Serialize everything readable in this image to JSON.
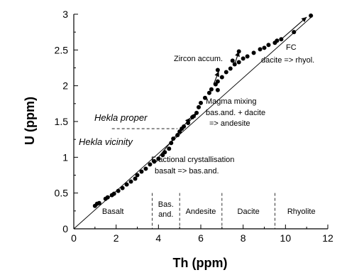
{
  "chart_data": {
    "type": "scatter",
    "xlabel": "Th (ppm)",
    "ylabel": "U (ppm)",
    "xlim": [
      0,
      12
    ],
    "ylim": [
      0,
      3
    ],
    "xticks": [
      "0",
      "2",
      "4",
      "6",
      "8",
      "10",
      "12"
    ],
    "yticks": [
      "0",
      "0.5",
      "1",
      "1.5",
      "2",
      "2.5",
      "3"
    ],
    "points": [
      {
        "x": 1.0,
        "y": 0.32
      },
      {
        "x": 1.1,
        "y": 0.35
      },
      {
        "x": 1.2,
        "y": 0.36
      },
      {
        "x": 1.5,
        "y": 0.42
      },
      {
        "x": 1.6,
        "y": 0.44
      },
      {
        "x": 1.8,
        "y": 0.47
      },
      {
        "x": 1.9,
        "y": 0.49
      },
      {
        "x": 2.1,
        "y": 0.53
      },
      {
        "x": 2.3,
        "y": 0.57
      },
      {
        "x": 2.5,
        "y": 0.62
      },
      {
        "x": 2.7,
        "y": 0.66
      },
      {
        "x": 2.9,
        "y": 0.7
      },
      {
        "x": 3.0,
        "y": 0.75
      },
      {
        "x": 3.2,
        "y": 0.8
      },
      {
        "x": 3.4,
        "y": 0.84
      },
      {
        "x": 3.6,
        "y": 0.9
      },
      {
        "x": 3.8,
        "y": 0.94
      },
      {
        "x": 4.0,
        "y": 0.98
      },
      {
        "x": 4.2,
        "y": 1.03
      },
      {
        "x": 4.3,
        "y": 1.07
      },
      {
        "x": 4.5,
        "y": 1.12
      },
      {
        "x": 4.6,
        "y": 1.2
      },
      {
        "x": 4.7,
        "y": 1.26
      },
      {
        "x": 4.9,
        "y": 1.31
      },
      {
        "x": 5.0,
        "y": 1.36
      },
      {
        "x": 5.1,
        "y": 1.4
      },
      {
        "x": 5.2,
        "y": 1.43
      },
      {
        "x": 5.4,
        "y": 1.48
      },
      {
        "x": 5.6,
        "y": 1.56
      },
      {
        "x": 5.8,
        "y": 1.62
      },
      {
        "x": 5.9,
        "y": 1.7
      },
      {
        "x": 6.0,
        "y": 1.76
      },
      {
        "x": 6.2,
        "y": 1.83
      },
      {
        "x": 6.4,
        "y": 1.9
      },
      {
        "x": 6.5,
        "y": 1.95
      },
      {
        "x": 6.7,
        "y": 2.02
      },
      {
        "x": 6.8,
        "y": 2.06
      },
      {
        "x": 7.0,
        "y": 2.12
      },
      {
        "x": 7.2,
        "y": 2.19
      },
      {
        "x": 7.4,
        "y": 2.24
      },
      {
        "x": 7.6,
        "y": 2.3
      },
      {
        "x": 7.8,
        "y": 2.33
      },
      {
        "x": 8.0,
        "y": 2.38
      },
      {
        "x": 8.2,
        "y": 2.41
      },
      {
        "x": 8.5,
        "y": 2.46
      },
      {
        "x": 8.8,
        "y": 2.51
      },
      {
        "x": 9.0,
        "y": 2.53
      },
      {
        "x": 9.2,
        "y": 2.57
      },
      {
        "x": 9.5,
        "y": 2.6
      },
      {
        "x": 9.6,
        "y": 2.63
      },
      {
        "x": 9.8,
        "y": 2.65
      },
      {
        "x": 10.4,
        "y": 2.75
      },
      {
        "x": 11.2,
        "y": 2.98
      },
      {
        "x": 6.8,
        "y": 2.22
      },
      {
        "x": 6.8,
        "y": 1.94
      },
      {
        "x": 7.8,
        "y": 2.48
      },
      {
        "x": 7.5,
        "y": 2.35
      }
    ],
    "annotations": [
      {
        "text": "Zircon accum."
      },
      {
        "text": "FC"
      },
      {
        "text": "dacite => rhyol."
      },
      {
        "text": "Magma mixing"
      },
      {
        "text": "bas.and. + dacite"
      },
      {
        "text": "=> andesite"
      },
      {
        "text": "Fractional crystallisation"
      },
      {
        "text": "basalt => bas.and."
      }
    ],
    "hekla": {
      "proper_label": "Hekla proper",
      "vicinity_label": "Hekla vicinity",
      "boundary_u": 1.4
    },
    "rock_regions": [
      {
        "label": "Basalt",
        "x_from": 0,
        "x_to": 3.7
      },
      {
        "label": "Bas.",
        "label2": "and.",
        "x_from": 3.7,
        "x_to": 5.0
      },
      {
        "label": "Andesite",
        "x_from": 5.0,
        "x_to": 7.0
      },
      {
        "label": "Dacite",
        "x_from": 7.0,
        "x_to": 9.5
      },
      {
        "label": "Rhyolite",
        "x_from": 9.5,
        "x_to": 12
      }
    ]
  }
}
